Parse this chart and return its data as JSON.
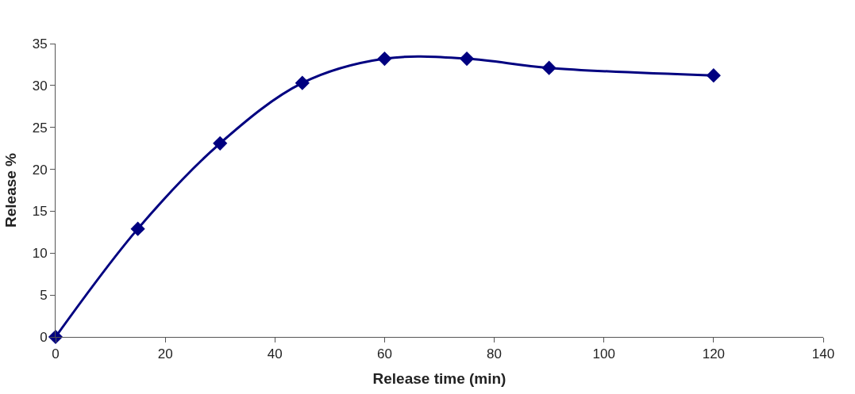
{
  "chart_data": {
    "type": "line",
    "xlabel": "Release time (min)",
    "ylabel": "Release %",
    "x": [
      0,
      15,
      30,
      45,
      60,
      75,
      90,
      120
    ],
    "series": [
      {
        "color": "#000080",
        "values": [
          0,
          12.9,
          23.1,
          30.3,
          33.2,
          33.2,
          32.1,
          31.2
        ]
      }
    ],
    "xlim": [
      0,
      140
    ],
    "xticks": [
      0,
      20,
      40,
      60,
      80,
      100,
      120,
      140
    ],
    "ylim": [
      0,
      35
    ],
    "yticks": [
      0,
      5,
      10,
      15,
      20,
      25,
      30,
      35
    ],
    "marker": "diamond",
    "line_style": "solid",
    "grid": false
  }
}
